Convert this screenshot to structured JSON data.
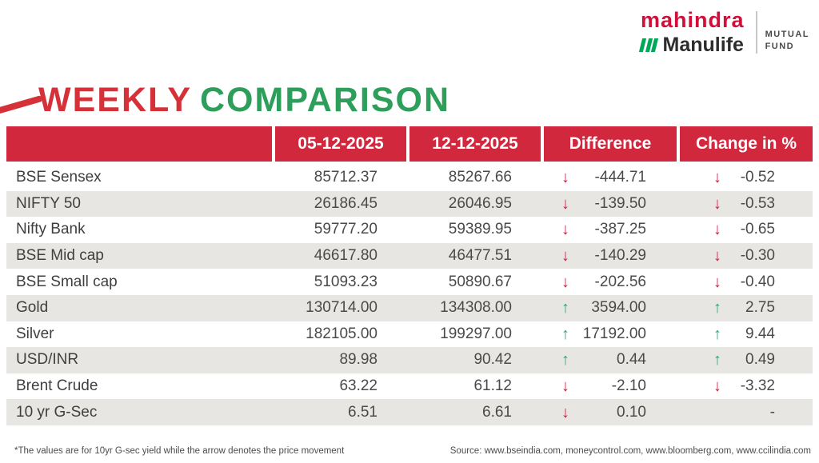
{
  "logo": {
    "brand_top": "mahindra",
    "brand_bottom": "Manulife",
    "unit_line1": "MUTUAL",
    "unit_line2": "FUND"
  },
  "title": {
    "word_red": "WEEKLY",
    "word_green": "COMPARISON"
  },
  "table": {
    "columns": [
      "",
      "05-12-2025",
      "12-12-2025",
      "Difference",
      "Change in %"
    ],
    "rows": [
      {
        "name": "BSE Sensex",
        "prev": "85712.37",
        "curr": "85267.66",
        "diff": "-444.71",
        "diff_dir": "down",
        "change": "-0.52",
        "change_dir": "down"
      },
      {
        "name": "NIFTY 50",
        "prev": "26186.45",
        "curr": "26046.95",
        "diff": "-139.50",
        "diff_dir": "down",
        "change": "-0.53",
        "change_dir": "down"
      },
      {
        "name": "Nifty Bank",
        "prev": "59777.20",
        "curr": "59389.95",
        "diff": "-387.25",
        "diff_dir": "down",
        "change": "-0.65",
        "change_dir": "down"
      },
      {
        "name": "BSE Mid cap",
        "prev": "46617.80",
        "curr": "46477.51",
        "diff": "-140.29",
        "diff_dir": "down",
        "change": "-0.30",
        "change_dir": "down"
      },
      {
        "name": "BSE Small cap",
        "prev": "51093.23",
        "curr": "50890.67",
        "diff": "-202.56",
        "diff_dir": "down",
        "change": "-0.40",
        "change_dir": "down"
      },
      {
        "name": "Gold",
        "prev": "130714.00",
        "curr": "134308.00",
        "diff": "3594.00",
        "diff_dir": "up",
        "change": "2.75",
        "change_dir": "up"
      },
      {
        "name": "Silver",
        "prev": "182105.00",
        "curr": "199297.00",
        "diff": "17192.00",
        "diff_dir": "up",
        "change": "9.44",
        "change_dir": "up"
      },
      {
        "name": "USD/INR",
        "prev": "89.98",
        "curr": "90.42",
        "diff": "0.44",
        "diff_dir": "up",
        "change": "0.49",
        "change_dir": "up"
      },
      {
        "name": "Brent Crude",
        "prev": "63.22",
        "curr": "61.12",
        "diff": "-2.10",
        "diff_dir": "down",
        "change": "-3.32",
        "change_dir": "down"
      },
      {
        "name": "10 yr G-Sec",
        "prev": "6.51",
        "curr": "6.61",
        "diff": "0.10",
        "diff_dir": "down",
        "change": "-",
        "change_dir": "none"
      }
    ]
  },
  "footnote": "*The values are for 10yr G-sec yield while the arrow denotes the price movement",
  "source": "Source: www.bseindia.com, moneycontrol.com, www.bloomberg.com, www.ccilindia.com",
  "colors": {
    "brand-red": "#d0103a",
    "manulife-green": "#00a758",
    "header-red": "#d2283e",
    "title-red": "#d43238",
    "title-green": "#2e9e5b",
    "arrow-red": "#c91d3f",
    "arrow-green": "#2ba477",
    "row-stripe": "#e8e6e3",
    "text-dark": "#454545"
  }
}
